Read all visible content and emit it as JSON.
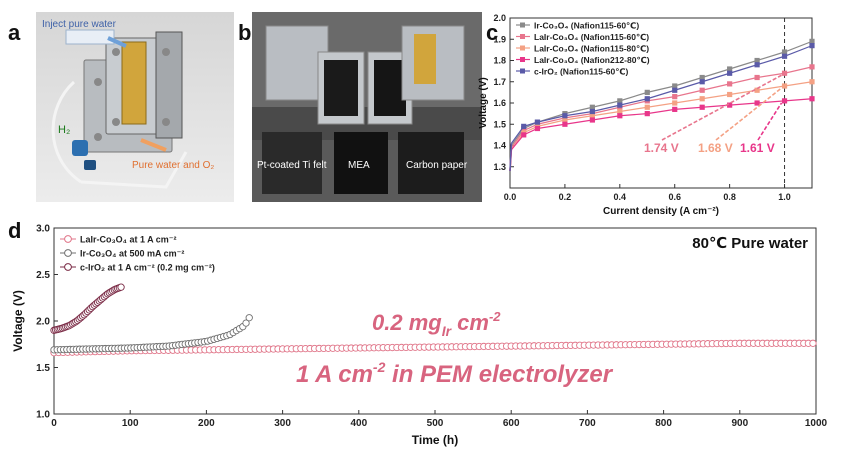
{
  "panels": {
    "a": {
      "letter": "a",
      "labels": {
        "inject": "Inject pure water",
        "h2": "H₂",
        "outlet": "Pure water and O₂"
      }
    },
    "b": {
      "letter": "b",
      "labels": {
        "ti_felt": "Pt-coated  Ti felt",
        "mea": "MEA",
        "carbon": "Carbon paper"
      }
    },
    "c": {
      "letter": "c"
    },
    "d": {
      "letter": "d"
    }
  },
  "colors": {
    "ir_co3o4": "#8a8a8a",
    "lair_60": "#e8758d",
    "lair_80": "#f4a184",
    "lair_212": "#e8368a",
    "c_iro2": "#5a5aa8",
    "d_lair": "#e07488",
    "d_ir": "#707070",
    "d_iro2": "#7a2a45",
    "annotation": "#d8647f"
  },
  "chart_data": [
    {
      "type": "line",
      "xlabel": "Current density (A cm⁻²)",
      "ylabel": "Voltage (V)",
      "xlim": [
        0,
        1.1
      ],
      "ylim": [
        1.2,
        2.0
      ],
      "xticks": [
        "0.0",
        "0.2",
        "0.4",
        "0.6",
        "0.8",
        "1.0"
      ],
      "yticks": [
        "1.3",
        "1.4",
        "1.5",
        "1.6",
        "1.7",
        "1.8",
        "1.9",
        "2.0"
      ],
      "reference_line_x": 1.0,
      "legend_position": "top-left",
      "series": [
        {
          "name": "Ir-Co₃O₄ (Nafion115-60℃)",
          "color": "#8a8a8a",
          "x": [
            0.005,
            0.05,
            0.1,
            0.2,
            0.3,
            0.4,
            0.5,
            0.6,
            0.7,
            0.8,
            0.9,
            1.0,
            1.1
          ],
          "y": [
            1.4,
            1.48,
            1.51,
            1.55,
            1.58,
            1.61,
            1.65,
            1.68,
            1.72,
            1.76,
            1.8,
            1.84,
            1.89
          ]
        },
        {
          "name": "LaIr-Co₃O₄ (Nafion115-60℃)",
          "color": "#e8758d",
          "x": [
            0.005,
            0.05,
            0.1,
            0.2,
            0.3,
            0.4,
            0.5,
            0.6,
            0.7,
            0.8,
            0.9,
            1.0,
            1.1
          ],
          "y": [
            1.39,
            1.47,
            1.5,
            1.53,
            1.55,
            1.58,
            1.61,
            1.63,
            1.66,
            1.69,
            1.72,
            1.74,
            1.77
          ]
        },
        {
          "name": "LaIr-Co₃O₄ (Nafion115-80℃)",
          "color": "#f4a184",
          "x": [
            0.005,
            0.05,
            0.1,
            0.2,
            0.3,
            0.4,
            0.5,
            0.6,
            0.7,
            0.8,
            0.9,
            1.0,
            1.1
          ],
          "y": [
            1.38,
            1.46,
            1.49,
            1.52,
            1.54,
            1.56,
            1.58,
            1.6,
            1.62,
            1.64,
            1.66,
            1.68,
            1.7
          ]
        },
        {
          "name": "LaIr-Co₃O₄ (Nafion212-80℃)",
          "color": "#e8368a",
          "x": [
            0.005,
            0.05,
            0.1,
            0.2,
            0.3,
            0.4,
            0.5,
            0.6,
            0.7,
            0.8,
            0.9,
            1.0,
            1.1
          ],
          "y": [
            1.38,
            1.45,
            1.48,
            1.5,
            1.52,
            1.54,
            1.55,
            1.57,
            1.58,
            1.59,
            1.6,
            1.61,
            1.62
          ]
        },
        {
          "name": "c-IrO₂ (Nafion115-60℃)",
          "color": "#5a5aa8",
          "x": [
            0.005,
            0.05,
            0.1,
            0.2,
            0.3,
            0.4,
            0.5,
            0.6,
            0.7,
            0.8,
            0.9,
            1.0,
            1.1
          ],
          "y": [
            1.41,
            1.49,
            1.51,
            1.54,
            1.56,
            1.59,
            1.62,
            1.66,
            1.7,
            1.74,
            1.78,
            1.82,
            1.87
          ]
        }
      ],
      "annotations": [
        {
          "text": "1.74 V",
          "color": "#e8758d"
        },
        {
          "text": "1.68 V",
          "color": "#f4a184"
        },
        {
          "text": "1.61 V",
          "color": "#e8368a"
        }
      ]
    },
    {
      "type": "scatter",
      "xlabel": "Time (h)",
      "ylabel": "Voltage (V)",
      "xlim": [
        0,
        1000
      ],
      "ylim": [
        1.0,
        3.0
      ],
      "xticks": [
        "0",
        "100",
        "200",
        "300",
        "400",
        "500",
        "600",
        "700",
        "800",
        "900",
        "1000"
      ],
      "yticks": [
        "1.0",
        "1.5",
        "2.0",
        "2.5",
        "3.0"
      ],
      "legend_position": "top-left",
      "title_right": "80℃  Pure water",
      "annotations": [
        "0.2 mg",
        "Ir",
        " cm",
        "-2",
        "1 A cm",
        "-2",
        " in PEM electrolyzer"
      ],
      "series": [
        {
          "name": "LaIr-Co₃O₄ at 1 A cm⁻²",
          "color": "#e07488",
          "x": [
            0,
            100,
            200,
            300,
            400,
            500,
            600,
            700,
            800,
            900,
            1000
          ],
          "y": [
            1.66,
            1.68,
            1.69,
            1.7,
            1.71,
            1.72,
            1.73,
            1.74,
            1.75,
            1.76,
            1.76
          ]
        },
        {
          "name": "Ir-Co₃O₄ at 500 mA cm⁻²",
          "color": "#707070",
          "x": [
            0,
            50,
            100,
            150,
            200,
            230,
            250,
            258
          ],
          "y": [
            1.69,
            1.7,
            1.71,
            1.73,
            1.78,
            1.85,
            1.95,
            2.06
          ]
        },
        {
          "name": "c-IrO₂ at 1 A cm⁻² (0.2 mg cm⁻²)",
          "color": "#7a2a45",
          "x": [
            0,
            10,
            20,
            30,
            40,
            50,
            60,
            70,
            80,
            90
          ],
          "y": [
            1.9,
            1.92,
            1.95,
            2.0,
            2.07,
            2.15,
            2.22,
            2.29,
            2.34,
            2.37
          ]
        }
      ]
    }
  ]
}
